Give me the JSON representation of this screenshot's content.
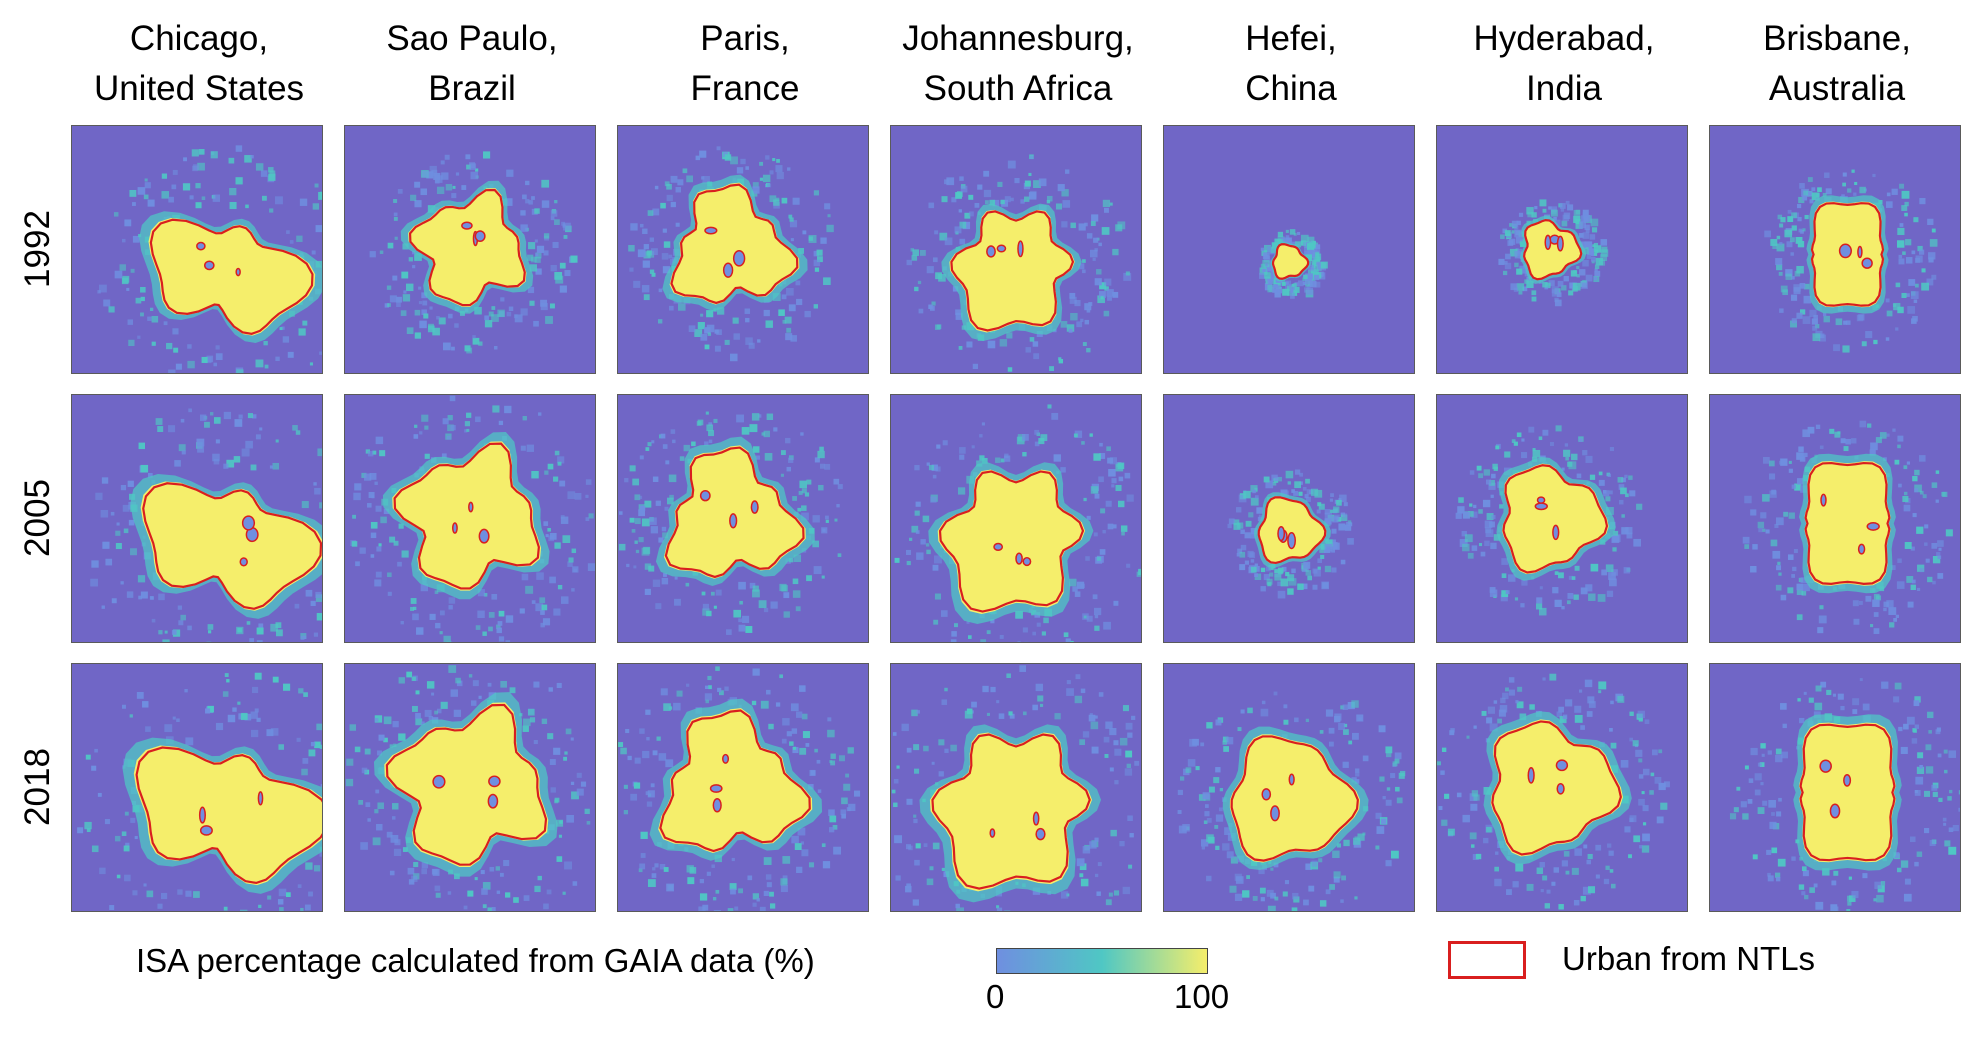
{
  "columns": [
    {
      "line1": "Chicago,",
      "line2": "United States"
    },
    {
      "line1": "Sao Paulo,",
      "line2": "Brazil"
    },
    {
      "line1": "Paris,",
      "line2": "France"
    },
    {
      "line1": "Johannesburg,",
      "line2": "South Africa"
    },
    {
      "line1": "Hefei,",
      "line2": "China"
    },
    {
      "line1": "Hyderabad,",
      "line2": "India"
    },
    {
      "line1": "Brisbane,",
      "line2": "Australia"
    }
  ],
  "rows": [
    "1992",
    "2005",
    "2018"
  ],
  "legend": {
    "isa_label": "ISA percentage calculated from GAIA data (%)",
    "scale_min": "0",
    "scale_max": "100",
    "urban_label": "Urban from NTLs"
  },
  "colors": {
    "background": "#7066c6",
    "low": "#6f8fe0",
    "mid": "#4fc7c4",
    "high": "#f5ee6b",
    "urban_outline": "#d91f1f"
  }
}
